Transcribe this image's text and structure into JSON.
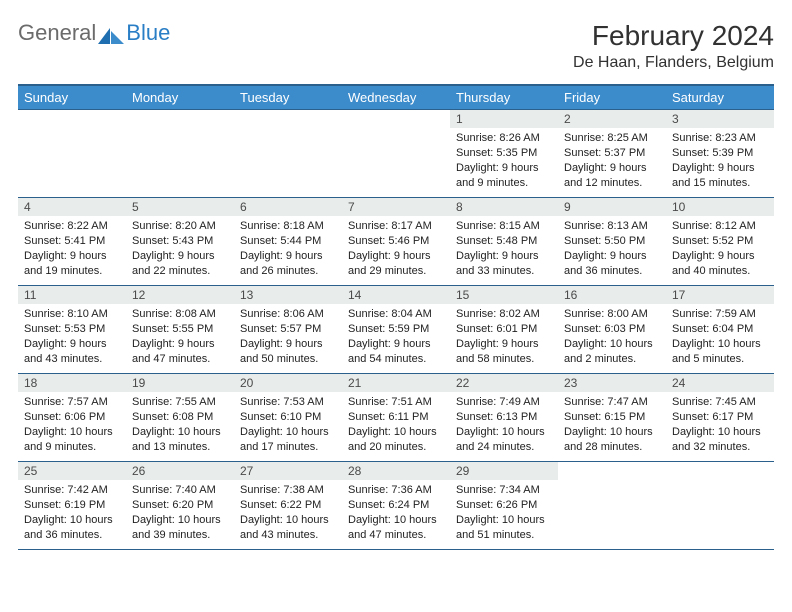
{
  "logo": {
    "part1": "General",
    "part2": "Blue"
  },
  "title": "February 2024",
  "location": "De Haan, Flanders, Belgium",
  "colors": {
    "header_bg": "#3c8ccc",
    "header_border": "#2b5f8c",
    "daynum_bg": "#e8eceb",
    "text": "#222222",
    "logo_gray": "#6b6b6b",
    "logo_blue": "#2a7ec5"
  },
  "weekdays": [
    "Sunday",
    "Monday",
    "Tuesday",
    "Wednesday",
    "Thursday",
    "Friday",
    "Saturday"
  ],
  "weeks": [
    [
      null,
      null,
      null,
      null,
      {
        "n": "1",
        "sr": "Sunrise: 8:26 AM",
        "ss": "Sunset: 5:35 PM",
        "d1": "Daylight: 9 hours",
        "d2": "and 9 minutes."
      },
      {
        "n": "2",
        "sr": "Sunrise: 8:25 AM",
        "ss": "Sunset: 5:37 PM",
        "d1": "Daylight: 9 hours",
        "d2": "and 12 minutes."
      },
      {
        "n": "3",
        "sr": "Sunrise: 8:23 AM",
        "ss": "Sunset: 5:39 PM",
        "d1": "Daylight: 9 hours",
        "d2": "and 15 minutes."
      }
    ],
    [
      {
        "n": "4",
        "sr": "Sunrise: 8:22 AM",
        "ss": "Sunset: 5:41 PM",
        "d1": "Daylight: 9 hours",
        "d2": "and 19 minutes."
      },
      {
        "n": "5",
        "sr": "Sunrise: 8:20 AM",
        "ss": "Sunset: 5:43 PM",
        "d1": "Daylight: 9 hours",
        "d2": "and 22 minutes."
      },
      {
        "n": "6",
        "sr": "Sunrise: 8:18 AM",
        "ss": "Sunset: 5:44 PM",
        "d1": "Daylight: 9 hours",
        "d2": "and 26 minutes."
      },
      {
        "n": "7",
        "sr": "Sunrise: 8:17 AM",
        "ss": "Sunset: 5:46 PM",
        "d1": "Daylight: 9 hours",
        "d2": "and 29 minutes."
      },
      {
        "n": "8",
        "sr": "Sunrise: 8:15 AM",
        "ss": "Sunset: 5:48 PM",
        "d1": "Daylight: 9 hours",
        "d2": "and 33 minutes."
      },
      {
        "n": "9",
        "sr": "Sunrise: 8:13 AM",
        "ss": "Sunset: 5:50 PM",
        "d1": "Daylight: 9 hours",
        "d2": "and 36 minutes."
      },
      {
        "n": "10",
        "sr": "Sunrise: 8:12 AM",
        "ss": "Sunset: 5:52 PM",
        "d1": "Daylight: 9 hours",
        "d2": "and 40 minutes."
      }
    ],
    [
      {
        "n": "11",
        "sr": "Sunrise: 8:10 AM",
        "ss": "Sunset: 5:53 PM",
        "d1": "Daylight: 9 hours",
        "d2": "and 43 minutes."
      },
      {
        "n": "12",
        "sr": "Sunrise: 8:08 AM",
        "ss": "Sunset: 5:55 PM",
        "d1": "Daylight: 9 hours",
        "d2": "and 47 minutes."
      },
      {
        "n": "13",
        "sr": "Sunrise: 8:06 AM",
        "ss": "Sunset: 5:57 PM",
        "d1": "Daylight: 9 hours",
        "d2": "and 50 minutes."
      },
      {
        "n": "14",
        "sr": "Sunrise: 8:04 AM",
        "ss": "Sunset: 5:59 PM",
        "d1": "Daylight: 9 hours",
        "d2": "and 54 minutes."
      },
      {
        "n": "15",
        "sr": "Sunrise: 8:02 AM",
        "ss": "Sunset: 6:01 PM",
        "d1": "Daylight: 9 hours",
        "d2": "and 58 minutes."
      },
      {
        "n": "16",
        "sr": "Sunrise: 8:00 AM",
        "ss": "Sunset: 6:03 PM",
        "d1": "Daylight: 10 hours",
        "d2": "and 2 minutes."
      },
      {
        "n": "17",
        "sr": "Sunrise: 7:59 AM",
        "ss": "Sunset: 6:04 PM",
        "d1": "Daylight: 10 hours",
        "d2": "and 5 minutes."
      }
    ],
    [
      {
        "n": "18",
        "sr": "Sunrise: 7:57 AM",
        "ss": "Sunset: 6:06 PM",
        "d1": "Daylight: 10 hours",
        "d2": "and 9 minutes."
      },
      {
        "n": "19",
        "sr": "Sunrise: 7:55 AM",
        "ss": "Sunset: 6:08 PM",
        "d1": "Daylight: 10 hours",
        "d2": "and 13 minutes."
      },
      {
        "n": "20",
        "sr": "Sunrise: 7:53 AM",
        "ss": "Sunset: 6:10 PM",
        "d1": "Daylight: 10 hours",
        "d2": "and 17 minutes."
      },
      {
        "n": "21",
        "sr": "Sunrise: 7:51 AM",
        "ss": "Sunset: 6:11 PM",
        "d1": "Daylight: 10 hours",
        "d2": "and 20 minutes."
      },
      {
        "n": "22",
        "sr": "Sunrise: 7:49 AM",
        "ss": "Sunset: 6:13 PM",
        "d1": "Daylight: 10 hours",
        "d2": "and 24 minutes."
      },
      {
        "n": "23",
        "sr": "Sunrise: 7:47 AM",
        "ss": "Sunset: 6:15 PM",
        "d1": "Daylight: 10 hours",
        "d2": "and 28 minutes."
      },
      {
        "n": "24",
        "sr": "Sunrise: 7:45 AM",
        "ss": "Sunset: 6:17 PM",
        "d1": "Daylight: 10 hours",
        "d2": "and 32 minutes."
      }
    ],
    [
      {
        "n": "25",
        "sr": "Sunrise: 7:42 AM",
        "ss": "Sunset: 6:19 PM",
        "d1": "Daylight: 10 hours",
        "d2": "and 36 minutes."
      },
      {
        "n": "26",
        "sr": "Sunrise: 7:40 AM",
        "ss": "Sunset: 6:20 PM",
        "d1": "Daylight: 10 hours",
        "d2": "and 39 minutes."
      },
      {
        "n": "27",
        "sr": "Sunrise: 7:38 AM",
        "ss": "Sunset: 6:22 PM",
        "d1": "Daylight: 10 hours",
        "d2": "and 43 minutes."
      },
      {
        "n": "28",
        "sr": "Sunrise: 7:36 AM",
        "ss": "Sunset: 6:24 PM",
        "d1": "Daylight: 10 hours",
        "d2": "and 47 minutes."
      },
      {
        "n": "29",
        "sr": "Sunrise: 7:34 AM",
        "ss": "Sunset: 6:26 PM",
        "d1": "Daylight: 10 hours",
        "d2": "and 51 minutes."
      },
      null,
      null
    ]
  ]
}
